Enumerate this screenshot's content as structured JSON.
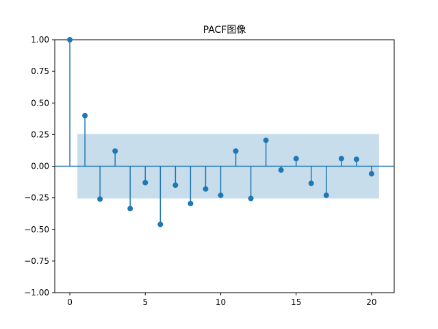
{
  "chart_data": {
    "type": "stem",
    "title": "PACF图像",
    "xlabel": "",
    "ylabel": "",
    "xlim": [
      -1,
      21.5
    ],
    "ylim": [
      -1.0,
      1.0
    ],
    "x_ticks": [
      0,
      5,
      10,
      15,
      20
    ],
    "x_tick_labels": [
      "0",
      "5",
      "10",
      "15",
      "20"
    ],
    "y_ticks": [
      1.0,
      0.75,
      0.5,
      0.25,
      0.0,
      -0.25,
      -0.5,
      -0.75,
      -1.0
    ],
    "y_tick_labels": [
      "1.00",
      "0.75",
      "0.50",
      "0.25",
      "0.00",
      "−0.25",
      "−0.50",
      "−0.75",
      "−1.00"
    ],
    "grid": false,
    "series": [
      {
        "x": [
          0,
          1,
          2,
          3,
          4,
          5,
          6,
          7,
          8,
          9,
          10,
          11,
          12,
          13,
          14,
          15,
          16,
          17,
          18,
          19,
          20
        ],
        "values": [
          1.0,
          0.4,
          -0.26,
          0.12,
          -0.335,
          -0.13,
          -0.46,
          -0.15,
          -0.295,
          -0.18,
          -0.23,
          0.12,
          -0.255,
          0.205,
          -0.03,
          0.06,
          -0.135,
          -0.23,
          0.06,
          0.055,
          -0.06
        ]
      }
    ],
    "confidence_band": {
      "x_range": [
        0.5,
        20.5
      ],
      "upper": 0.255,
      "lower": -0.255
    },
    "colors": {
      "stem": "#1f77b4",
      "band": "#1f77b4",
      "axis": "#000000"
    }
  }
}
